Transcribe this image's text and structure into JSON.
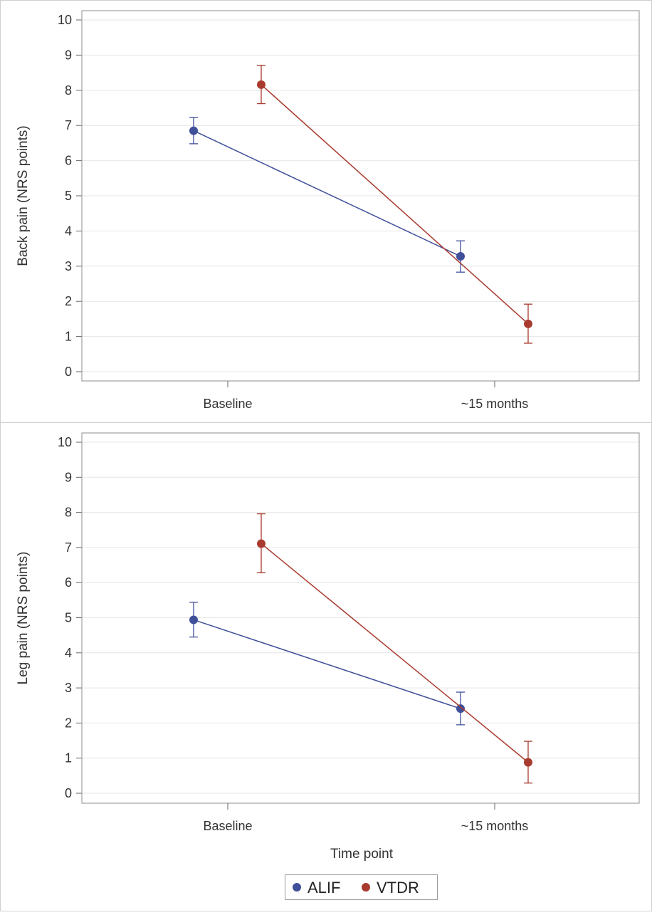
{
  "chart_data": [
    {
      "type": "line",
      "xlabel": "",
      "ylabel": "Back pain (NRS points)",
      "ylim": [
        0,
        10
      ],
      "yticks": [
        0,
        1,
        2,
        3,
        4,
        5,
        6,
        7,
        8,
        9,
        10
      ],
      "categories": [
        "Baseline",
        "~15 months"
      ],
      "grid": true,
      "series": [
        {
          "name": "ALIF",
          "color": "#3f4f9a",
          "values": [
            6.85,
            3.28
          ],
          "lower": [
            6.48,
            2.83
          ],
          "upper": [
            7.23,
            3.72
          ]
        },
        {
          "name": "VTDR",
          "color": "#a83a2e",
          "values": [
            8.16,
            1.36
          ],
          "lower": [
            7.62,
            0.81
          ],
          "upper": [
            8.71,
            1.92
          ]
        }
      ]
    },
    {
      "type": "line",
      "xlabel": "Time point",
      "ylabel": "Leg pain (NRS points)",
      "ylim": [
        0,
        10
      ],
      "yticks": [
        0,
        1,
        2,
        3,
        4,
        5,
        6,
        7,
        8,
        9,
        10
      ],
      "categories": [
        "Baseline",
        "~15 months"
      ],
      "grid": true,
      "series": [
        {
          "name": "ALIF",
          "color": "#3f4f9a",
          "values": [
            4.94,
            2.41
          ],
          "lower": [
            4.45,
            1.95
          ],
          "upper": [
            5.44,
            2.88
          ]
        },
        {
          "name": "VTDR",
          "color": "#a83a2e",
          "values": [
            7.11,
            0.88
          ],
          "lower": [
            6.28,
            0.29
          ],
          "upper": [
            7.96,
            1.48
          ]
        }
      ]
    }
  ],
  "legend": {
    "placement": "bottom-center",
    "items": [
      {
        "label": "ALIF",
        "color": "#3f4f9a"
      },
      {
        "label": "VTDR",
        "color": "#a83a2e"
      }
    ]
  }
}
